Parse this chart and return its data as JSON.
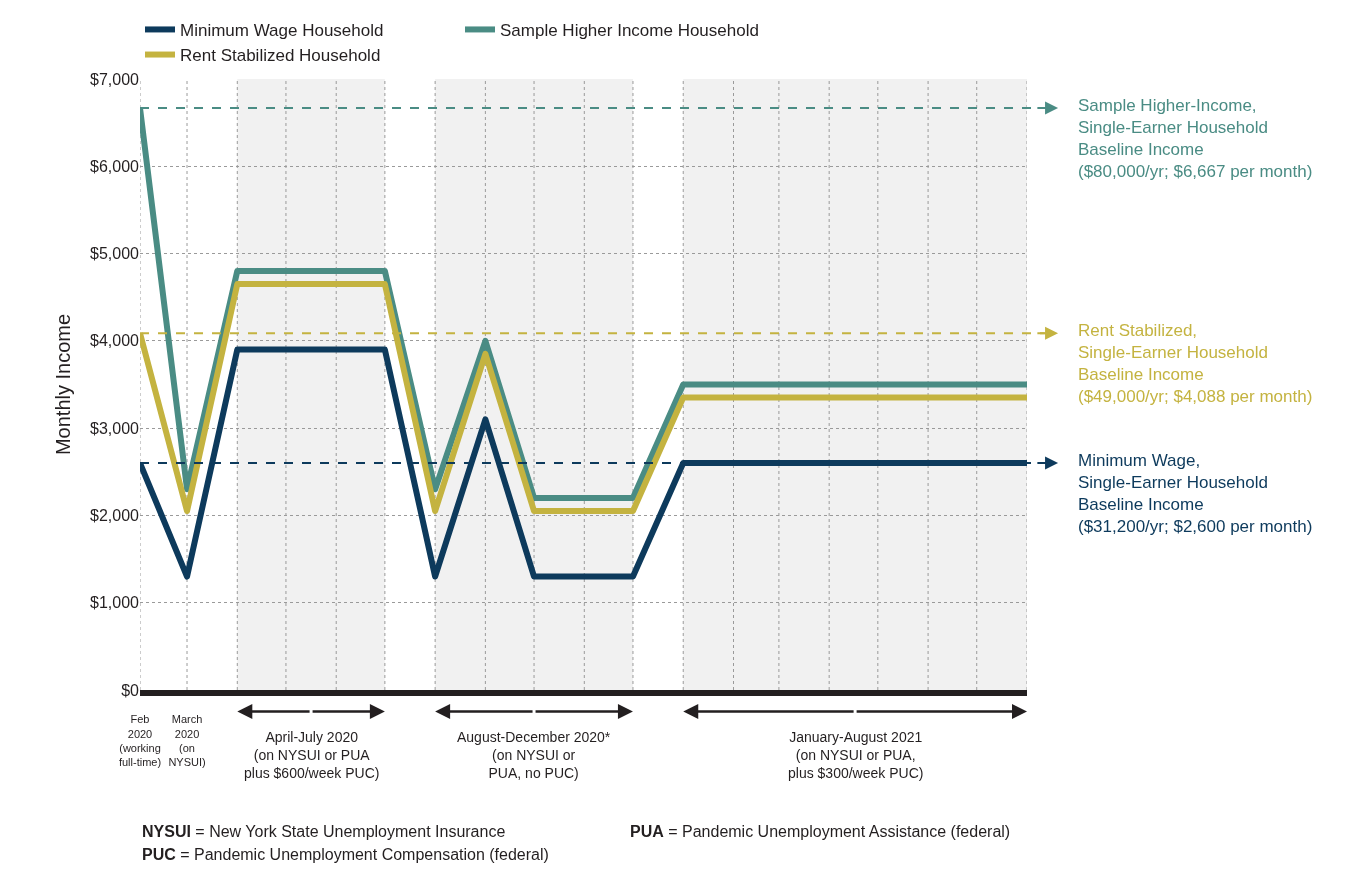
{
  "chart_data": {
    "type": "line",
    "x": [
      "2020-02",
      "2020-03",
      "2020-04",
      "2020-05",
      "2020-06",
      "2020-07",
      "2020-08",
      "2020-09",
      "2020-10",
      "2020-11",
      "2020-12",
      "2021-01",
      "2021-02",
      "2021-03",
      "2021-04",
      "2021-05",
      "2021-06",
      "2021-07",
      "2021-08"
    ],
    "xlim": [
      "2020-02",
      "2021-08"
    ],
    "xticks": [
      {
        "value": "2020-02",
        "label": "Feb\n2020\n(working\nfull-time)"
      },
      {
        "value": "2020-03",
        "label": "March\n2020\n(on\nNYSUI)"
      },
      {
        "value": "2020-04",
        "label": null
      },
      {
        "value": "2020-05",
        "label": null
      },
      {
        "value": "2020-06",
        "label": null
      },
      {
        "value": "2020-07",
        "label": null
      },
      {
        "value": "2020-08",
        "label": null
      },
      {
        "value": "2020-09",
        "label": null
      },
      {
        "value": "2020-10",
        "label": null
      },
      {
        "value": "2020-11",
        "label": null
      },
      {
        "value": "2020-12",
        "label": null
      },
      {
        "value": "2021-01",
        "label": null
      },
      {
        "value": "2021-02",
        "label": null
      },
      {
        "value": "2021-03",
        "label": null
      },
      {
        "value": "2021-04",
        "label": null
      },
      {
        "value": "2021-05",
        "label": null
      },
      {
        "value": "2021-06",
        "label": null
      },
      {
        "value": "2021-07",
        "label": null
      },
      {
        "value": "2021-08",
        "label": null
      }
    ],
    "ylabel": "Monthly Income",
    "ylim": [
      0,
      7000
    ],
    "yticks": [
      {
        "value": 0,
        "label": "$0"
      },
      {
        "value": 1000,
        "label": "$1,000"
      },
      {
        "value": 2000,
        "label": "$2,000"
      },
      {
        "value": 3000,
        "label": "$3,000"
      },
      {
        "value": 4000,
        "label": "$4,000"
      },
      {
        "value": 5000,
        "label": "$5,000"
      },
      {
        "value": 6000,
        "label": "$6,000"
      },
      {
        "value": 7000,
        "label": "$7,000"
      }
    ],
    "series": [
      {
        "name": "Minimum Wage Household",
        "color": "#0d3a5c",
        "values": [
          2600,
          1300,
          3900,
          3900,
          3900,
          3900,
          1300,
          3100,
          1300,
          1300,
          1300,
          2600,
          2600,
          2600,
          2600,
          2600,
          2600,
          2600,
          2600
        ]
      },
      {
        "name": "Sample Higher Income Household",
        "color": "#4a8c84",
        "values": [
          6667,
          2300,
          4800,
          4800,
          4800,
          4800,
          2300,
          4000,
          2200,
          2200,
          2200,
          3500,
          3500,
          3500,
          3500,
          3500,
          3500,
          3500,
          3500
        ]
      },
      {
        "name": "Rent Stabilized Household",
        "color": "#c4b340",
        "values": [
          4088,
          2050,
          4650,
          4650,
          4650,
          4650,
          2050,
          3850,
          2050,
          2050,
          2050,
          3350,
          3350,
          3350,
          3350,
          3350,
          3350,
          3350,
          3350
        ]
      }
    ],
    "ref_lines": [
      {
        "axis": "y",
        "value": 6667,
        "label": "Sample Higher-Income,\nSingle-Earner Household\nBaseline Income\n($80,000/yr; $6,667 per month)",
        "color": "#4a8c84",
        "line_style": "dashed"
      },
      {
        "axis": "y",
        "value": 4088,
        "label": "Rent Stabilized,\nSingle-Earner Household\nBaseline Income\n($49,000/yr; $4,088 per month)",
        "color": "#c4b340",
        "line_style": "dashed"
      },
      {
        "axis": "y",
        "value": 2600,
        "label": "Minimum Wage,\nSingle-Earner Household\nBaseline Income\n($31,200/yr; $2,600 per month)",
        "color": "#0d3a5c",
        "line_style": "dashed"
      }
    ],
    "bands": [
      {
        "axis": "x",
        "from": "2020-04",
        "to": "2020-07",
        "label": "April-July 2020\n(on NYSUI or PUA\nplus $600/week PUC)",
        "color": "#f1f1f1"
      },
      {
        "axis": "x",
        "from": "2020-08",
        "to": "2020-12",
        "label": "August-December 2020*\n(on NYSUI or\nPUA, no PUC)",
        "color": "#f1f1f1"
      },
      {
        "axis": "x",
        "from": "2021-01",
        "to": "2021-08",
        "label": "January-August 2021\n(on NYSUI or PUA,\nplus $300/week PUC)",
        "color": "#f1f1f1"
      }
    ],
    "annotations": [
      "NYSUI = New York State Unemployment Insurance",
      "PUA = Pandemic Unemployment Assistance (federal)",
      "PUC = Pandemic Unemployment Compensation (federal)"
    ],
    "grid": true,
    "legend": "top",
    "marker": "none",
    "line_style": "solid"
  }
}
